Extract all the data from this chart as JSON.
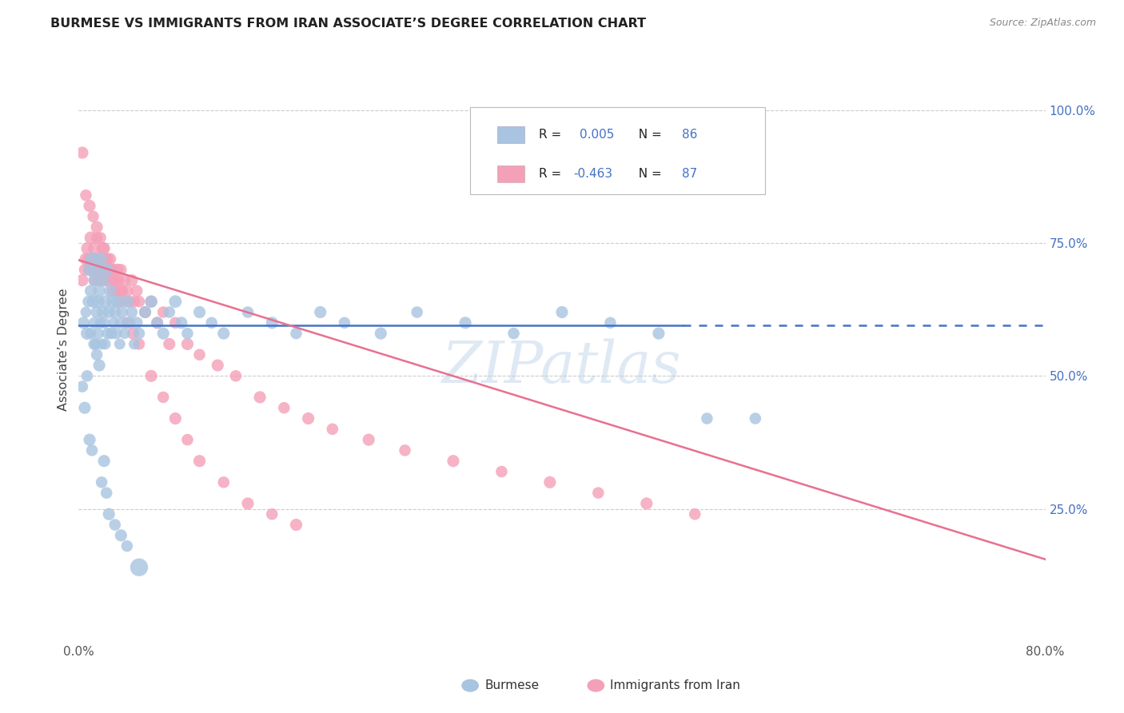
{
  "title": "BURMESE VS IMMIGRANTS FROM IRAN ASSOCIATE’S DEGREE CORRELATION CHART",
  "source": "Source: ZipAtlas.com",
  "ylabel": "Associate’s Degree",
  "ytick_labels": [
    "",
    "25.0%",
    "50.0%",
    "75.0%",
    "100.0%"
  ],
  "ytick_values": [
    0.0,
    0.25,
    0.5,
    0.75,
    1.0
  ],
  "xlim": [
    0.0,
    0.8
  ],
  "ylim": [
    0.0,
    1.1
  ],
  "color_blue": "#a8c4e0",
  "color_pink": "#f4a0b8",
  "line_blue": "#4472c4",
  "line_pink": "#e87090",
  "watermark": "ZIPatlas",
  "burmese_line_x0": 0.0,
  "burmese_line_x1": 0.5,
  "burmese_line_x1_dash": 0.8,
  "burmese_line_y": 0.595,
  "iran_line_x0": 0.0,
  "iran_line_x1": 0.8,
  "iran_line_y0": 0.718,
  "iran_line_y1": 0.155,
  "burmese_x": [
    0.004,
    0.006,
    0.007,
    0.008,
    0.009,
    0.01,
    0.01,
    0.011,
    0.012,
    0.013,
    0.013,
    0.014,
    0.015,
    0.015,
    0.016,
    0.016,
    0.017,
    0.018,
    0.018,
    0.019,
    0.02,
    0.02,
    0.021,
    0.022,
    0.022,
    0.023,
    0.024,
    0.025,
    0.026,
    0.027,
    0.028,
    0.029,
    0.03,
    0.031,
    0.032,
    0.034,
    0.035,
    0.036,
    0.038,
    0.04,
    0.042,
    0.044,
    0.046,
    0.048,
    0.05,
    0.055,
    0.06,
    0.065,
    0.07,
    0.075,
    0.08,
    0.085,
    0.09,
    0.1,
    0.11,
    0.12,
    0.14,
    0.16,
    0.18,
    0.2,
    0.22,
    0.25,
    0.28,
    0.32,
    0.36,
    0.4,
    0.44,
    0.48,
    0.52,
    0.56,
    0.003,
    0.005,
    0.007,
    0.009,
    0.011,
    0.013,
    0.015,
    0.017,
    0.019,
    0.021,
    0.023,
    0.025,
    0.03,
    0.035,
    0.04,
    0.05
  ],
  "burmese_y": [
    0.6,
    0.62,
    0.58,
    0.64,
    0.7,
    0.66,
    0.58,
    0.72,
    0.64,
    0.6,
    0.68,
    0.56,
    0.7,
    0.62,
    0.64,
    0.58,
    0.66,
    0.6,
    0.72,
    0.56,
    0.68,
    0.62,
    0.6,
    0.64,
    0.56,
    0.7,
    0.58,
    0.62,
    0.66,
    0.58,
    0.64,
    0.6,
    0.62,
    0.58,
    0.64,
    0.56,
    0.6,
    0.62,
    0.58,
    0.64,
    0.6,
    0.62,
    0.56,
    0.6,
    0.58,
    0.62,
    0.64,
    0.6,
    0.58,
    0.62,
    0.64,
    0.6,
    0.58,
    0.62,
    0.6,
    0.58,
    0.62,
    0.6,
    0.58,
    0.62,
    0.6,
    0.58,
    0.62,
    0.6,
    0.58,
    0.62,
    0.6,
    0.58,
    0.42,
    0.42,
    0.48,
    0.44,
    0.5,
    0.38,
    0.36,
    0.56,
    0.54,
    0.52,
    0.3,
    0.34,
    0.28,
    0.24,
    0.22,
    0.2,
    0.18,
    0.14
  ],
  "burmese_sizes": [
    120,
    100,
    130,
    110,
    140,
    120,
    100,
    150,
    130,
    110,
    120,
    100,
    140,
    120,
    130,
    110,
    120,
    100,
    140,
    100,
    130,
    120,
    110,
    130,
    100,
    140,
    110,
    120,
    130,
    110,
    120,
    100,
    120,
    110,
    130,
    100,
    120,
    110,
    100,
    130,
    120,
    110,
    100,
    120,
    110,
    120,
    130,
    110,
    120,
    110,
    130,
    120,
    110,
    120,
    110,
    120,
    110,
    120,
    110,
    120,
    110,
    120,
    110,
    120,
    110,
    120,
    110,
    120,
    110,
    110,
    110,
    120,
    110,
    120,
    110,
    120,
    110,
    120,
    110,
    120,
    110,
    120,
    110,
    120,
    110,
    260
  ],
  "iran_x": [
    0.003,
    0.005,
    0.006,
    0.007,
    0.008,
    0.009,
    0.01,
    0.011,
    0.012,
    0.013,
    0.013,
    0.014,
    0.015,
    0.015,
    0.016,
    0.017,
    0.018,
    0.019,
    0.02,
    0.021,
    0.022,
    0.023,
    0.024,
    0.025,
    0.026,
    0.027,
    0.028,
    0.029,
    0.03,
    0.031,
    0.032,
    0.033,
    0.034,
    0.035,
    0.036,
    0.038,
    0.04,
    0.042,
    0.044,
    0.046,
    0.048,
    0.05,
    0.055,
    0.06,
    0.065,
    0.07,
    0.075,
    0.08,
    0.09,
    0.1,
    0.115,
    0.13,
    0.15,
    0.17,
    0.19,
    0.21,
    0.24,
    0.27,
    0.31,
    0.35,
    0.39,
    0.43,
    0.47,
    0.51,
    0.003,
    0.006,
    0.009,
    0.012,
    0.015,
    0.018,
    0.021,
    0.024,
    0.027,
    0.03,
    0.035,
    0.04,
    0.045,
    0.05,
    0.06,
    0.07,
    0.08,
    0.09,
    0.1,
    0.12,
    0.14,
    0.16,
    0.18
  ],
  "iran_y": [
    0.68,
    0.7,
    0.72,
    0.74,
    0.72,
    0.7,
    0.76,
    0.72,
    0.7,
    0.74,
    0.68,
    0.72,
    0.7,
    0.76,
    0.68,
    0.72,
    0.7,
    0.68,
    0.74,
    0.7,
    0.68,
    0.72,
    0.7,
    0.68,
    0.72,
    0.7,
    0.66,
    0.7,
    0.68,
    0.66,
    0.7,
    0.68,
    0.66,
    0.7,
    0.66,
    0.68,
    0.66,
    0.64,
    0.68,
    0.64,
    0.66,
    0.64,
    0.62,
    0.64,
    0.6,
    0.62,
    0.56,
    0.6,
    0.56,
    0.54,
    0.52,
    0.5,
    0.46,
    0.44,
    0.42,
    0.4,
    0.38,
    0.36,
    0.34,
    0.32,
    0.3,
    0.28,
    0.26,
    0.24,
    0.92,
    0.84,
    0.82,
    0.8,
    0.78,
    0.76,
    0.74,
    0.72,
    0.7,
    0.68,
    0.64,
    0.6,
    0.58,
    0.56,
    0.5,
    0.46,
    0.42,
    0.38,
    0.34,
    0.3,
    0.26,
    0.24,
    0.22
  ],
  "iran_sizes": [
    120,
    110,
    130,
    120,
    110,
    120,
    130,
    120,
    110,
    130,
    110,
    120,
    130,
    110,
    120,
    110,
    120,
    110,
    130,
    110,
    120,
    110,
    120,
    110,
    120,
    110,
    120,
    110,
    120,
    110,
    120,
    110,
    120,
    110,
    120,
    110,
    120,
    110,
    120,
    110,
    120,
    110,
    120,
    110,
    120,
    110,
    120,
    110,
    120,
    110,
    120,
    110,
    120,
    110,
    120,
    110,
    120,
    110,
    120,
    110,
    120,
    110,
    120,
    110,
    120,
    110,
    120,
    110,
    120,
    110,
    120,
    110,
    120,
    110,
    120,
    110,
    120,
    110,
    120,
    110,
    120,
    110,
    120,
    110,
    120,
    110,
    120
  ]
}
